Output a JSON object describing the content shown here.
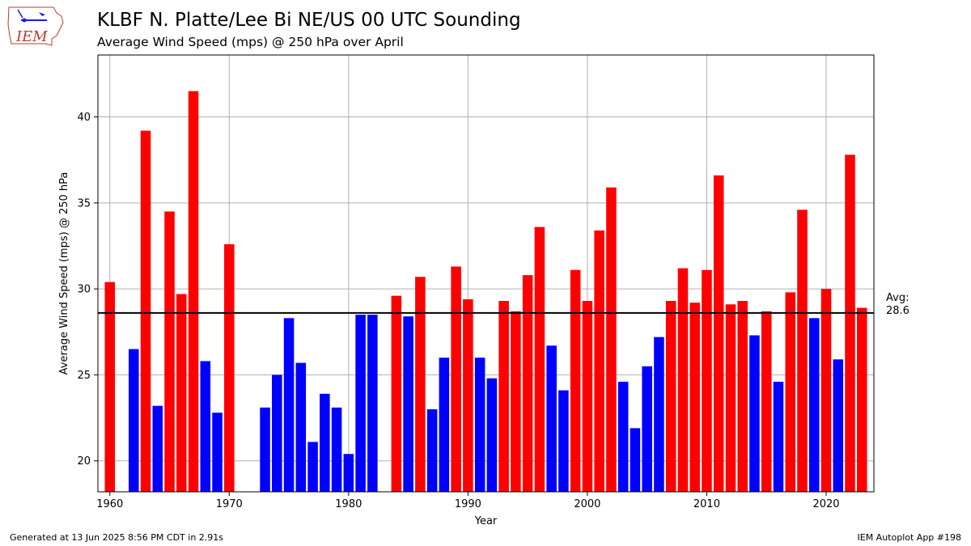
{
  "header": {
    "title": "KLBF N. Platte/Lee Bi  NE/US 00 UTC Sounding",
    "subtitle": "Average Wind Speed (mps) @ 250 hPa over April"
  },
  "logo": {
    "text": "IEM",
    "icon": "iem-logo-icon"
  },
  "footer": {
    "generated": "Generated at 13 Jun 2025 8:56 PM CDT in 2.91s",
    "app": "IEM Autoplot App #198"
  },
  "colors": {
    "above": "#ff0000",
    "below": "#0000ff",
    "avg_line": "#000000",
    "grid": "#b0b0b0"
  },
  "chart_data": {
    "type": "bar",
    "title": "KLBF N. Platte/Lee Bi  NE/US 00 UTC Sounding",
    "subtitle": "Average Wind Speed (mps) @ 250 hPa over April",
    "xlabel": "Year",
    "ylabel": "Average Wind Speed (mps) @ 250 hPa",
    "xlim": [
      1959,
      2024
    ],
    "ylim": [
      18.2,
      43.6
    ],
    "xticks": [
      1960,
      1970,
      1980,
      1990,
      2000,
      2010,
      2020
    ],
    "yticks": [
      20,
      25,
      30,
      35,
      40
    ],
    "grid": true,
    "average": 28.6,
    "average_label": "Avg:\n28.6",
    "avg_label_line1": "Avg:",
    "avg_label_line2": "28.6",
    "x": [
      1960,
      1962,
      1963,
      1964,
      1965,
      1966,
      1967,
      1968,
      1969,
      1970,
      1973,
      1974,
      1975,
      1976,
      1977,
      1978,
      1979,
      1980,
      1981,
      1982,
      1984,
      1985,
      1986,
      1987,
      1988,
      1989,
      1990,
      1991,
      1992,
      1993,
      1994,
      1995,
      1996,
      1997,
      1998,
      1999,
      2000,
      2001,
      2002,
      2003,
      2004,
      2005,
      2006,
      2007,
      2008,
      2009,
      2010,
      2011,
      2012,
      2013,
      2014,
      2015,
      2016,
      2017,
      2018,
      2019,
      2020,
      2021,
      2022,
      2023
    ],
    "values": [
      30.4,
      26.5,
      39.2,
      23.2,
      34.5,
      29.7,
      41.5,
      25.8,
      22.8,
      32.6,
      23.1,
      25.0,
      28.3,
      25.7,
      21.1,
      23.9,
      23.1,
      20.4,
      28.5,
      28.5,
      29.6,
      28.4,
      30.7,
      23.0,
      26.0,
      31.3,
      29.4,
      26.0,
      24.8,
      29.3,
      28.7,
      30.8,
      33.6,
      26.7,
      24.1,
      31.1,
      29.3,
      33.4,
      35.9,
      24.6,
      21.9,
      25.5,
      27.2,
      29.3,
      31.2,
      29.2,
      31.1,
      36.6,
      29.1,
      29.3,
      27.3,
      28.7,
      24.6,
      29.8,
      34.6,
      28.3,
      30.0,
      25.9,
      37.8,
      28.9
    ]
  }
}
